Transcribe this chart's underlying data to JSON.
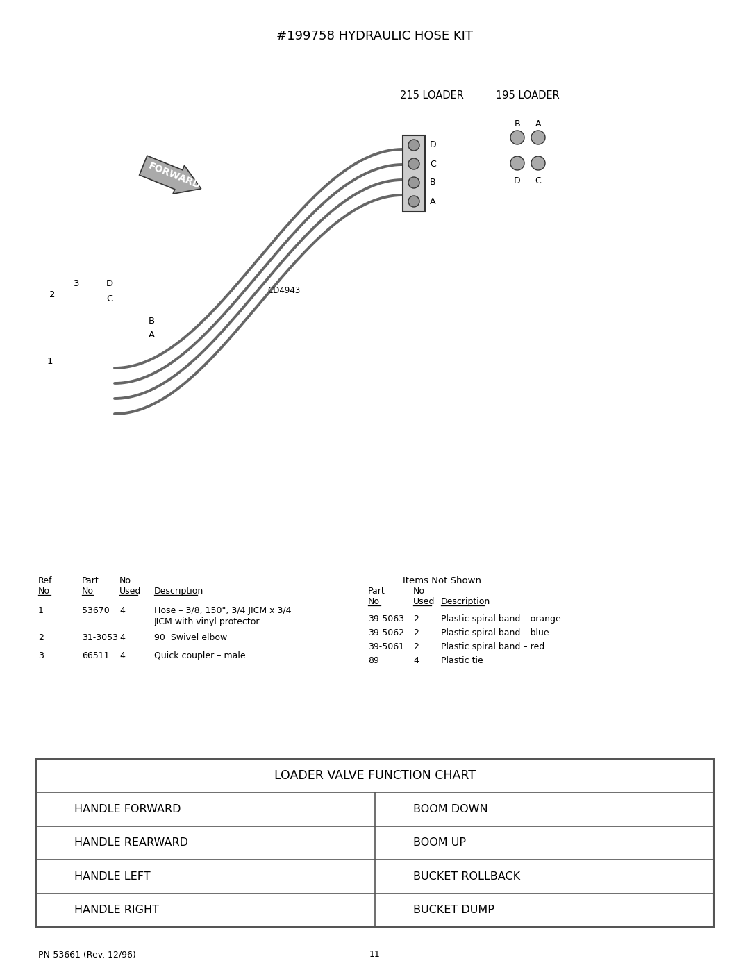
{
  "title": "#199758 HYDRAULIC HOSE KIT",
  "bg_color": "#ffffff",
  "text_color": "#000000",
  "loader_215": "215 LOADER",
  "loader_195": "195 LOADER",
  "forward_label": "FORWARD",
  "cd_label": "CD4943",
  "footer_left": "PN-53661 (Rev. 12/96)",
  "footer_page": "11",
  "items_not_shown": "Items Not Shown",
  "parts_right_rows": [
    [
      "39-5063",
      "2",
      "Plastic spiral band – orange"
    ],
    [
      "39-5062",
      "2",
      "Plastic spiral band – blue"
    ],
    [
      "39-5061",
      "2",
      "Plastic spiral band – red"
    ],
    [
      "89",
      "4",
      "Plastic tie"
    ]
  ],
  "chart_title": "LOADER VALVE FUNCTION CHART",
  "chart_rows": [
    [
      "HANDLE FORWARD",
      "BOOM DOWN"
    ],
    [
      "HANDLE REARWARD",
      "BOOM UP"
    ],
    [
      "HANDLE LEFT",
      "BUCKET ROLLBACK"
    ],
    [
      "HANDLE RIGHT",
      "BUCKET DUMP"
    ]
  ],
  "port_labels_215": [
    "D",
    "C",
    "B",
    "A"
  ],
  "fitting_labels": [
    [
      110,
      408,
      "3"
    ],
    [
      158,
      408,
      "D"
    ],
    [
      75,
      425,
      "2"
    ],
    [
      158,
      430,
      "C"
    ],
    [
      218,
      462,
      "B"
    ],
    [
      218,
      482,
      "A"
    ],
    [
      72,
      520,
      "1"
    ]
  ]
}
